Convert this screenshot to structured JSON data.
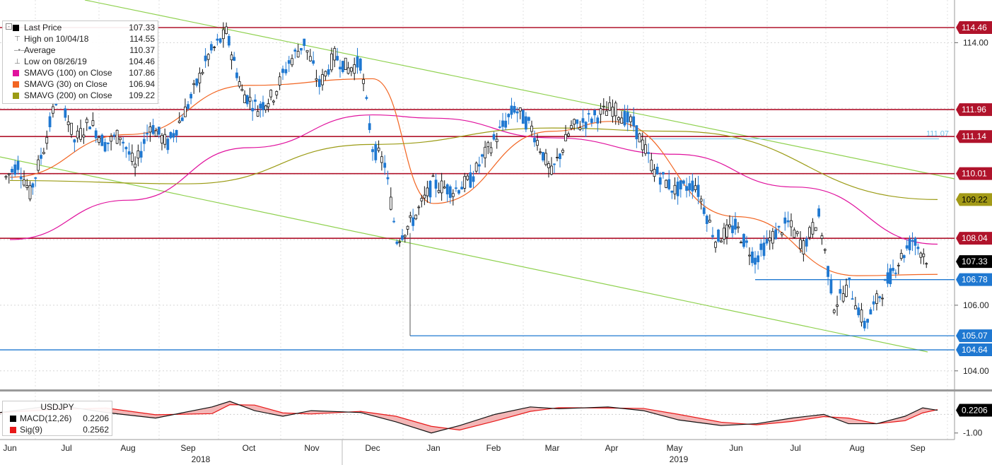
{
  "legend": [
    {
      "label": "Last Price",
      "value": "107.33",
      "color": "#000000",
      "kind": "swatch"
    },
    {
      "label": "High on 10/04/18",
      "value": "114.55",
      "color": "#888888",
      "kind": "tick-high"
    },
    {
      "label": "Average",
      "value": "110.37",
      "color": "#888888",
      "kind": "tick-avg"
    },
    {
      "label": "Low on 08/26/19",
      "value": "104.46",
      "color": "#888888",
      "kind": "tick-low"
    },
    {
      "label": "SMAVG (100)  on Close",
      "value": "107.86",
      "color": "#e0119d",
      "kind": "swatch"
    },
    {
      "label": "SMAVG (30)  on Close",
      "value": "106.94",
      "color": "#f26522",
      "kind": "swatch"
    },
    {
      "label": "SMAVG (200)  on Close",
      "value": "109.22",
      "color": "#9b9b14",
      "kind": "swatch"
    }
  ],
  "macd_legend": {
    "title": "USDJPY",
    "rows": [
      {
        "label": "MACD(12,26)",
        "value": "0.2206",
        "color": "#000000"
      },
      {
        "label": "Sig(9)",
        "value": "0.2562",
        "color": "#e81818"
      }
    ]
  },
  "price_axis": {
    "ticks": [
      "114.00",
      "106.00",
      "104.00"
    ],
    "tags": [
      {
        "text": "114.46",
        "value": 114.46,
        "bg": "#b0132b",
        "fg": "#ffffff"
      },
      {
        "text": "111.96",
        "value": 111.96,
        "bg": "#b0132b",
        "fg": "#ffffff"
      },
      {
        "text": "111.14",
        "value": 111.14,
        "bg": "#b0132b",
        "fg": "#ffffff"
      },
      {
        "text": "110.01",
        "value": 110.01,
        "bg": "#b0132b",
        "fg": "#ffffff"
      },
      {
        "text": "109.22",
        "value": 109.22,
        "bg": "#a39a17",
        "fg": "#000000"
      },
      {
        "text": "108.04",
        "value": 108.04,
        "bg": "#b0132b",
        "fg": "#ffffff"
      },
      {
        "text": "107.33",
        "value": 107.33,
        "bg": "#000000",
        "fg": "#ffffff"
      },
      {
        "text": "106.78",
        "value": 106.78,
        "bg": "#1f78d1",
        "fg": "#ffffff"
      },
      {
        "text": "105.07",
        "value": 105.07,
        "bg": "#1f78d1",
        "fg": "#ffffff"
      },
      {
        "text": "104.64",
        "value": 104.64,
        "bg": "#1f78d1",
        "fg": "#ffffff"
      }
    ],
    "faint_label": "111.07"
  },
  "macd_axis": {
    "tag": "0.2206",
    "ticks": [
      "-1.00"
    ]
  },
  "time_axis": {
    "months": [
      "Jun",
      "Jul",
      "Aug",
      "Sep",
      "Oct",
      "Nov",
      "Dec",
      "Jan",
      "Feb",
      "Mar",
      "Apr",
      "May",
      "Jun",
      "Jul",
      "Aug",
      "Sep"
    ],
    "years": [
      "2018",
      "2019"
    ]
  },
  "chart_data": {
    "type": "candlestick",
    "symbol": "USDJPY",
    "y_range": [
      103.5,
      115.3
    ],
    "x_range": [
      "2018-06",
      "2019-09"
    ],
    "grid": true,
    "last_price": 107.33,
    "period_high": {
      "date": "10/04/18",
      "value": 114.55
    },
    "period_low": {
      "date": "08/26/19",
      "value": 104.46
    },
    "average": 110.37,
    "horizontal_levels": [
      {
        "value": 114.46,
        "color": "#b0132b"
      },
      {
        "value": 111.96,
        "color": "#b0132b"
      },
      {
        "value": 111.14,
        "color": "#b0132b"
      },
      {
        "value": 110.01,
        "color": "#b0132b"
      },
      {
        "value": 108.04,
        "color": "#b0132b"
      },
      {
        "value": 106.78,
        "color": "#1f78d1"
      },
      {
        "value": 105.07,
        "color": "#1f78d1"
      },
      {
        "value": 104.64,
        "color": "#1f78d1"
      }
    ],
    "price_path": [
      [
        "2018-06",
        109.9
      ],
      [
        "2018-06",
        110.3
      ],
      [
        "2018-06",
        109.4
      ],
      [
        "2018-07",
        110.8
      ],
      [
        "2018-07",
        112.6
      ],
      [
        "2018-07",
        111.0
      ],
      [
        "2018-07",
        111.6
      ],
      [
        "2018-08",
        110.9
      ],
      [
        "2018-08",
        111.2
      ],
      [
        "2018-08",
        110.2
      ],
      [
        "2018-08",
        111.5
      ],
      [
        "2018-09",
        110.9
      ],
      [
        "2018-09",
        112.1
      ],
      [
        "2018-09",
        113.6
      ],
      [
        "2018-10",
        114.3
      ],
      [
        "2018-10",
        112.5
      ],
      [
        "2018-10",
        112.0
      ],
      [
        "2018-10",
        112.4
      ],
      [
        "2018-11",
        113.4
      ],
      [
        "2018-11",
        114.0
      ],
      [
        "2018-11",
        112.7
      ],
      [
        "2018-11",
        113.6
      ],
      [
        "2018-12",
        113.2
      ],
      [
        "2018-12",
        113.4
      ],
      [
        "2018-12",
        110.8
      ],
      [
        "2018-12",
        110.3
      ],
      [
        "2018-12",
        108.0
      ],
      [
        "2019-01",
        108.6
      ],
      [
        "2019-01",
        109.7
      ],
      [
        "2019-01",
        109.5
      ],
      [
        "2019-02",
        109.8
      ],
      [
        "2019-02",
        110.6
      ],
      [
        "2019-02",
        111.3
      ],
      [
        "2019-02",
        112.0
      ],
      [
        "2019-03",
        111.4
      ],
      [
        "2019-03",
        110.0
      ],
      [
        "2019-03",
        111.4
      ],
      [
        "2019-04",
        111.7
      ],
      [
        "2019-04",
        112.0
      ],
      [
        "2019-04",
        111.5
      ],
      [
        "2019-05",
        110.1
      ],
      [
        "2019-05",
        109.5
      ],
      [
        "2019-05",
        109.7
      ],
      [
        "2019-06",
        108.0
      ],
      [
        "2019-06",
        108.4
      ],
      [
        "2019-06",
        107.4
      ],
      [
        "2019-07",
        108.1
      ],
      [
        "2019-07",
        108.5
      ],
      [
        "2019-07",
        107.8
      ],
      [
        "2019-07",
        108.7
      ],
      [
        "2019-08",
        106.0
      ],
      [
        "2019-08",
        106.6
      ],
      [
        "2019-08",
        105.4
      ],
      [
        "2019-08",
        106.3
      ],
      [
        "2019-09",
        107.2
      ],
      [
        "2019-09",
        108.0
      ],
      [
        "2019-09",
        107.33
      ]
    ],
    "series": [
      {
        "name": "SMAVG (100)  on Close",
        "value": 107.86,
        "color": "#e0119d",
        "values": [
          [
            "2018-06",
            108.0
          ],
          [
            "2018-08",
            109.2
          ],
          [
            "2018-10",
            110.8
          ],
          [
            "2018-12",
            111.8
          ],
          [
            "2019-01",
            111.7
          ],
          [
            "2019-03",
            111.1
          ],
          [
            "2019-05",
            110.6
          ],
          [
            "2019-07",
            109.6
          ],
          [
            "2019-09",
            107.86
          ]
        ]
      },
      {
        "name": "SMAVG (30)  on Close",
        "value": 106.94,
        "color": "#f26522",
        "values": [
          [
            "2018-06",
            109.9
          ],
          [
            "2018-08",
            111.2
          ],
          [
            "2018-10",
            112.7
          ],
          [
            "2018-12",
            112.9
          ],
          [
            "2019-01",
            109.1
          ],
          [
            "2019-03",
            111.3
          ],
          [
            "2019-04",
            111.6
          ],
          [
            "2019-06",
            108.7
          ],
          [
            "2019-08",
            106.9
          ],
          [
            "2019-09",
            106.94
          ]
        ]
      },
      {
        "name": "SMAVG (200)  on Close",
        "value": 109.22,
        "color": "#9b9b14",
        "values": [
          [
            "2018-06",
            109.8
          ],
          [
            "2018-09",
            109.7
          ],
          [
            "2018-12",
            110.9
          ],
          [
            "2019-03",
            111.4
          ],
          [
            "2019-05",
            111.3
          ],
          [
            "2019-09",
            109.22
          ]
        ]
      }
    ],
    "macd": {
      "name": "MACD(12,26)",
      "value": 0.2206,
      "signal_name": "Sig(9)",
      "signal_value": 0.2562,
      "y_range": [
        -1.2,
        1.0
      ]
    }
  }
}
